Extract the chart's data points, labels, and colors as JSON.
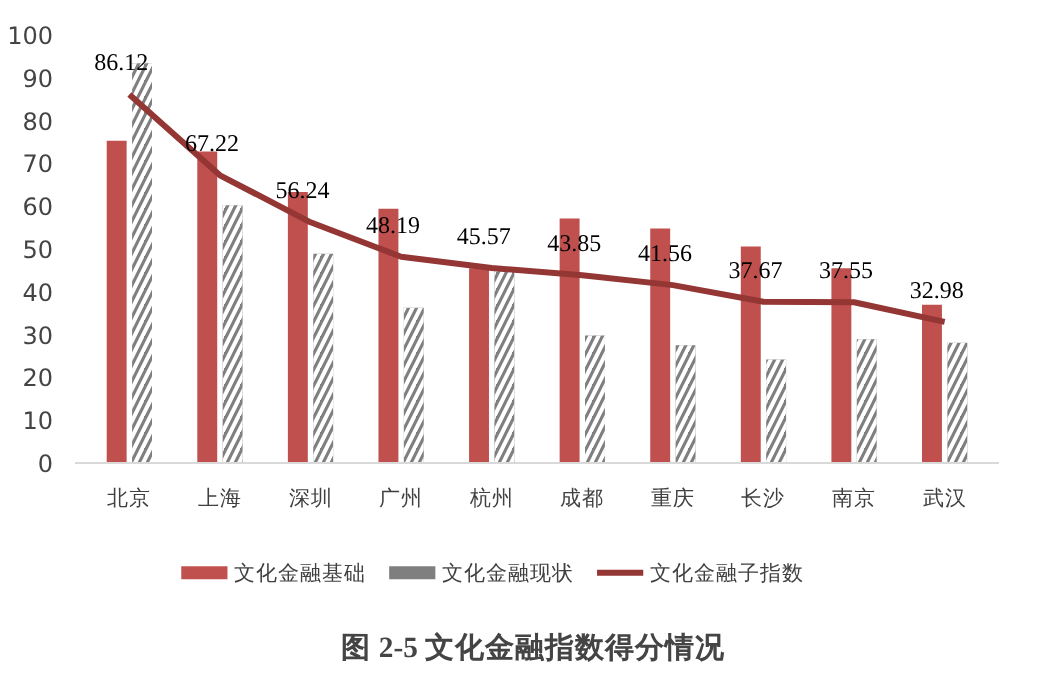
{
  "chart_data": {
    "type": "bar",
    "title": "图 2-5  文化金融指数得分情况",
    "categories": [
      "北京",
      "上海",
      "深圳",
      "广州",
      "杭州",
      "成都",
      "重庆",
      "长沙",
      "南京",
      "武汉"
    ],
    "series": [
      {
        "name": "文化金融基础",
        "color": "#c0504d",
        "values": [
          75.3,
          72.8,
          63.3,
          59.4,
          45.5,
          57.1,
          54.8,
          50.6,
          45.5,
          37.0
        ]
      },
      {
        "name": "文化金融现状",
        "color": "#7f7f7f",
        "values": [
          93.4,
          60.2,
          48.9,
          36.3,
          44.8,
          29.8,
          27.5,
          24.2,
          28.9,
          28.1
        ]
      },
      {
        "name": "文化金融子指数",
        "type": "line",
        "color": "#943634",
        "values": [
          86.12,
          67.22,
          56.24,
          48.19,
          45.57,
          43.85,
          41.56,
          37.67,
          37.55,
          32.98
        ],
        "value_labels": [
          "86.12",
          "67.22",
          "56.24",
          "48.19",
          "45.57",
          "43.85",
          "41.56",
          "37.67",
          "37.55",
          "32.98"
        ]
      }
    ],
    "ylim": [
      0,
      100
    ],
    "yticks": [
      0,
      10,
      20,
      30,
      40,
      50,
      60,
      70,
      80,
      90,
      100
    ],
    "grid": false,
    "legend": "bottom"
  }
}
